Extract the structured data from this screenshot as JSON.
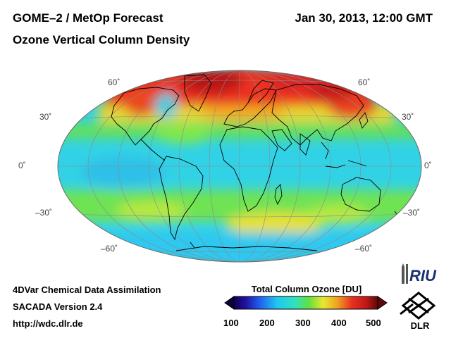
{
  "header": {
    "title_line1": "GOME–2 / MetOp Forecast",
    "title_line2": "Ozone Vertical Column Density",
    "datetime": "Jan 30, 2013, 12:00 GMT"
  },
  "map": {
    "projection": "Hammer-Aitoff",
    "lat_labels": {
      "n60": "60˚",
      "n30": "30˚",
      "eq": "0˚",
      "s30": "–30˚",
      "s60": "–60˚"
    },
    "colors": {
      "ocean_base": "#32d2e6",
      "high_ozone": "#e02020",
      "mid_ozone": "#f0c020",
      "green_band": "#70e050"
    }
  },
  "footer": {
    "line1": "4DVar Chemical Data Assimilation",
    "line2": "SACADA Version 2.4",
    "line3": "http://wdc.dlr.de"
  },
  "colorbar": {
    "title": "Total Column Ozone [DU]",
    "ticks": [
      "100",
      "200",
      "300",
      "400",
      "500"
    ]
  },
  "logos": {
    "riu": "RIU",
    "dlr": "DLR"
  }
}
